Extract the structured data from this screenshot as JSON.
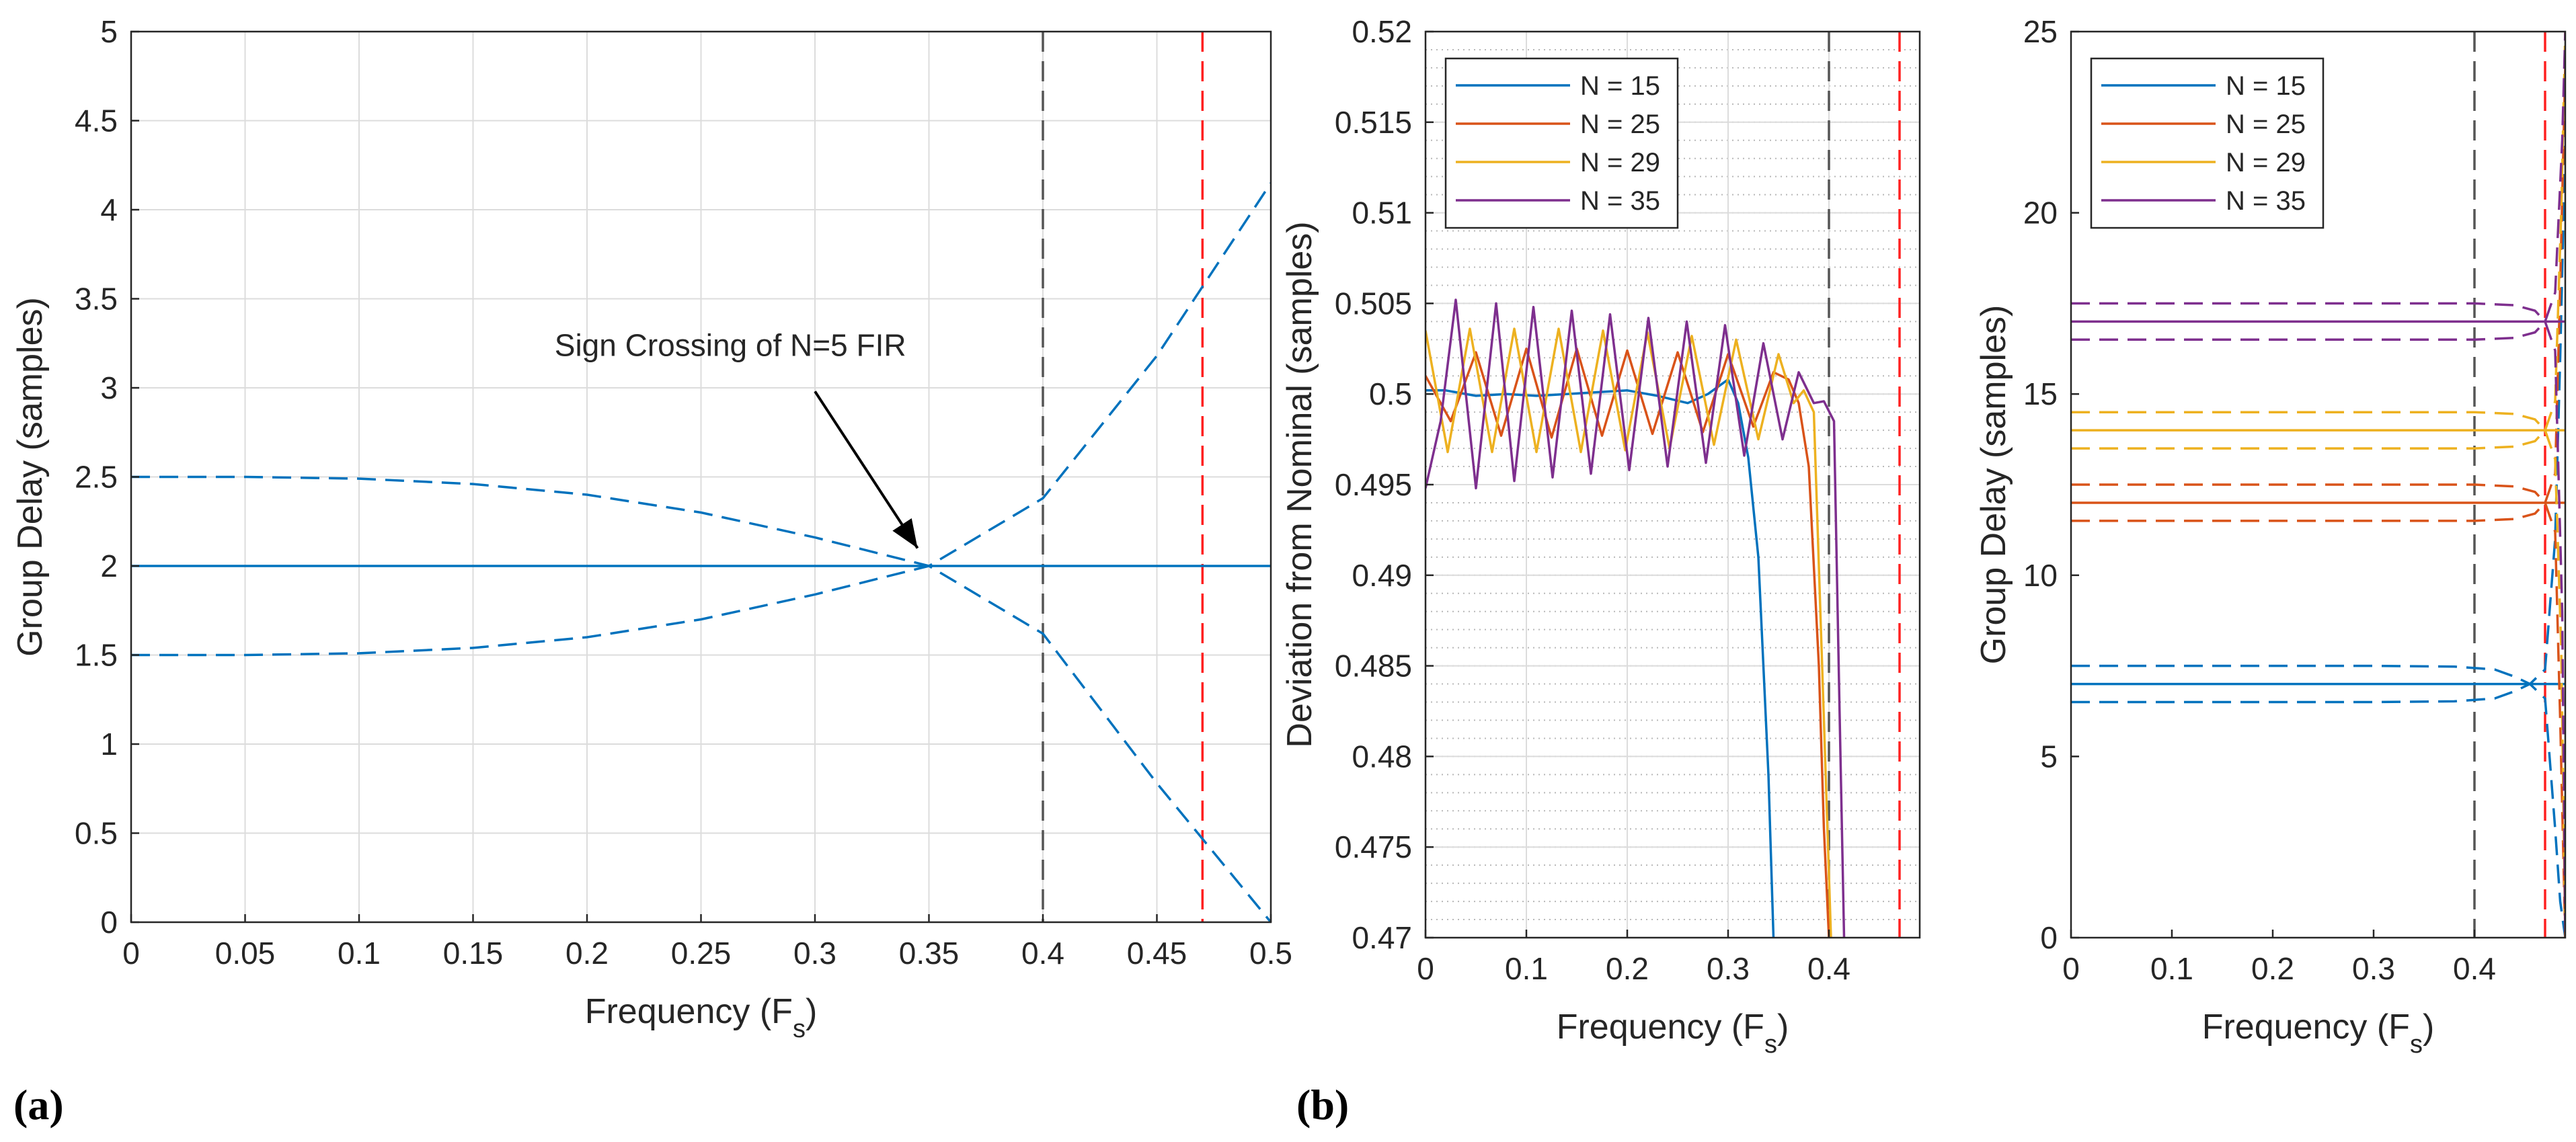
{
  "panel_labels": {
    "a": "(a)",
    "b": "(b)"
  },
  "colors": {
    "blue": "#0072BD",
    "orange": "#D95319",
    "yellow": "#EDB120",
    "purple": "#7E2F8E",
    "grey_dash": "#555555",
    "red_dash": "#FF2020",
    "grid": "#DCDCDC",
    "axis": "#262626"
  },
  "chart_data": [
    {
      "id": "a",
      "type": "line",
      "title": "",
      "xlabel": "Frequency (F",
      "xlabel_sub": "s",
      "xlabel_end": ")",
      "ylabel": "Group Delay (samples)",
      "xlim": [
        0,
        0.5
      ],
      "ylim": [
        0,
        5
      ],
      "xticks": [
        0,
        0.05,
        0.1,
        0.15,
        0.2,
        0.25,
        0.3,
        0.35,
        0.4,
        0.45,
        0.5
      ],
      "xticklabels": [
        "0",
        "0.05",
        "0.1",
        "0.15",
        "0.2",
        "0.25",
        "0.3",
        "0.35",
        "0.4",
        "0.45",
        "0.5"
      ],
      "yticks": [
        0,
        0.5,
        1,
        1.5,
        2,
        2.5,
        3,
        3.5,
        4,
        4.5,
        5
      ],
      "yticklabels": [
        "0",
        "0.5",
        "1",
        "1.5",
        "2",
        "2.5",
        "3",
        "3.5",
        "4",
        "4.5",
        "5"
      ],
      "grid": true,
      "vlines": [
        {
          "x": 0.4,
          "color": "grey_dash"
        },
        {
          "x": 0.47,
          "color": "red_dash"
        }
      ],
      "annotation": {
        "text": "Sign Crossing of N=5 FIR",
        "text_x": 0.34,
        "text_y": 3.18,
        "arrow_from": [
          0.3,
          2.98
        ],
        "arrow_to": [
          0.345,
          2.1
        ]
      },
      "series": [
        {
          "name": "N = 5 nominal",
          "color": "blue",
          "style": "solid",
          "x": [
            0,
            0.5
          ],
          "y": [
            2,
            2
          ]
        },
        {
          "name": "N = 5 upper",
          "color": "blue",
          "style": "dashed",
          "x": [
            0,
            0.05,
            0.1,
            0.15,
            0.2,
            0.25,
            0.3,
            0.35,
            0.4,
            0.45,
            0.5
          ],
          "y": [
            2.5,
            2.5,
            2.49,
            2.46,
            2.4,
            2.3,
            2.16,
            2.0,
            1.62,
            0.78,
            0.0
          ]
        },
        {
          "name": "N = 5 lower",
          "color": "blue",
          "style": "dashed",
          "x": [
            0,
            0.05,
            0.1,
            0.15,
            0.2,
            0.25,
            0.3,
            0.35,
            0.4,
            0.45,
            0.5
          ],
          "y": [
            1.5,
            1.5,
            1.51,
            1.54,
            1.6,
            1.7,
            1.84,
            2.0,
            2.38,
            3.18,
            4.15
          ]
        }
      ]
    },
    {
      "id": "b1",
      "type": "line",
      "title": "",
      "xlabel": "Frequency (F",
      "xlabel_sub": "s",
      "xlabel_end": ")",
      "ylabel": "Deviation from Nominal (samples)",
      "xlim": [
        0,
        0.49
      ],
      "ylim": [
        0.47,
        0.52
      ],
      "xticks": [
        0,
        0.1,
        0.2,
        0.3,
        0.4
      ],
      "xticklabels": [
        "0",
        "0.1",
        "0.2",
        "0.3",
        "0.4"
      ],
      "yticks": [
        0.47,
        0.475,
        0.48,
        0.485,
        0.49,
        0.495,
        0.5,
        0.505,
        0.51,
        0.515,
        0.52
      ],
      "yticklabels": [
        "0.47",
        "0.475",
        "0.48",
        "0.485",
        "0.49",
        "0.495",
        "0.5",
        "0.505",
        "0.51",
        "0.515",
        "0.52"
      ],
      "grid": true,
      "minor_ygrid_step": 0.001,
      "vlines": [
        {
          "x": 0.4,
          "color": "grey_dash"
        },
        {
          "x": 0.47,
          "color": "red_dash"
        }
      ],
      "legend": {
        "location": "top-left",
        "entries": [
          "N = 15",
          "N = 25",
          "N = 29",
          "N = 35"
        ]
      },
      "series": [
        {
          "name": "N = 15",
          "color": "blue",
          "style": "solid",
          "x": [
            0,
            0.02,
            0.05,
            0.08,
            0.11,
            0.14,
            0.17,
            0.2,
            0.23,
            0.26,
            0.28,
            0.3,
            0.31,
            0.32,
            0.33,
            0.34,
            0.345
          ],
          "y": [
            0.5002,
            0.5002,
            0.4999,
            0.5,
            0.4999,
            0.5,
            0.5001,
            0.5002,
            0.4999,
            0.4995,
            0.5,
            0.5008,
            0.4995,
            0.4965,
            0.491,
            0.479,
            0.47
          ]
        },
        {
          "name": "N = 25",
          "color": "orange",
          "style": "solid",
          "x": [
            0,
            0.025,
            0.05,
            0.075,
            0.1,
            0.125,
            0.15,
            0.175,
            0.2,
            0.225,
            0.25,
            0.275,
            0.3,
            0.325,
            0.345,
            0.36,
            0.37,
            0.38,
            0.39,
            0.395,
            0.4
          ],
          "y": [
            0.501,
            0.4985,
            0.5023,
            0.4977,
            0.5025,
            0.4976,
            0.5025,
            0.4977,
            0.5024,
            0.4978,
            0.5023,
            0.4979,
            0.5022,
            0.4982,
            0.5012,
            0.5008,
            0.4995,
            0.496,
            0.485,
            0.476,
            0.47
          ]
        },
        {
          "name": "N = 29",
          "color": "yellow",
          "style": "solid",
          "x": [
            0,
            0.022,
            0.044,
            0.066,
            0.088,
            0.11,
            0.132,
            0.154,
            0.176,
            0.198,
            0.22,
            0.242,
            0.264,
            0.286,
            0.308,
            0.33,
            0.35,
            0.365,
            0.375,
            0.385,
            0.395,
            0.402
          ],
          "y": [
            0.5035,
            0.4968,
            0.5036,
            0.4968,
            0.5036,
            0.4968,
            0.5036,
            0.4968,
            0.5035,
            0.4969,
            0.5034,
            0.497,
            0.5032,
            0.4972,
            0.503,
            0.4975,
            0.5022,
            0.4995,
            0.5002,
            0.499,
            0.482,
            0.47
          ]
        },
        {
          "name": "N = 35",
          "color": "purple",
          "style": "solid",
          "x": [
            0,
            0.015,
            0.03,
            0.05,
            0.07,
            0.088,
            0.107,
            0.126,
            0.145,
            0.164,
            0.183,
            0.202,
            0.221,
            0.24,
            0.259,
            0.278,
            0.297,
            0.316,
            0.335,
            0.354,
            0.37,
            0.385,
            0.395,
            0.405,
            0.41,
            0.415
          ],
          "y": [
            0.4948,
            0.4985,
            0.5052,
            0.4948,
            0.505,
            0.4952,
            0.5048,
            0.4954,
            0.5046,
            0.4956,
            0.5044,
            0.4958,
            0.5042,
            0.496,
            0.504,
            0.4962,
            0.5038,
            0.4966,
            0.5028,
            0.4975,
            0.5012,
            0.4995,
            0.4996,
            0.4985,
            0.484,
            0.47
          ]
        }
      ]
    },
    {
      "id": "b2",
      "type": "line",
      "title": "",
      "xlabel": "Frequency (F",
      "xlabel_sub": "s",
      "xlabel_end": ")",
      "ylabel": "Group Delay (samples)",
      "xlim": [
        0,
        0.49
      ],
      "ylim": [
        0,
        25
      ],
      "xticks": [
        0,
        0.1,
        0.2,
        0.3,
        0.4
      ],
      "xticklabels": [
        "0",
        "0.1",
        "0.2",
        "0.3",
        "0.4"
      ],
      "yticks": [
        0,
        5,
        10,
        15,
        20,
        25
      ],
      "yticklabels": [
        "0",
        "5",
        "10",
        "15",
        "20",
        "25"
      ],
      "grid": false,
      "vlines": [
        {
          "x": 0.4,
          "color": "grey_dash"
        },
        {
          "x": 0.47,
          "color": "red_dash"
        }
      ],
      "legend": {
        "location": "top-left",
        "entries": [
          "N = 15",
          "N = 25",
          "N = 29",
          "N = 35"
        ]
      },
      "series": [
        {
          "name": "N = 15 nominal",
          "color": "blue",
          "style": "solid",
          "x": [
            0,
            0.49
          ],
          "y": [
            7,
            7
          ]
        },
        {
          "name": "N = 15 upper",
          "color": "blue",
          "style": "dashed",
          "x": [
            0,
            0.1,
            0.2,
            0.3,
            0.38,
            0.42,
            0.44,
            0.455,
            0.47,
            0.48,
            0.485,
            0.49
          ],
          "y": [
            7.5,
            7.5,
            7.5,
            7.5,
            7.48,
            7.4,
            7.2,
            7.0,
            6.6,
            3.0,
            1.0,
            0.0
          ]
        },
        {
          "name": "N = 15 lower",
          "color": "blue",
          "style": "dashed",
          "x": [
            0,
            0.1,
            0.2,
            0.3,
            0.38,
            0.42,
            0.44,
            0.455,
            0.47,
            0.48,
            0.485,
            0.49
          ],
          "y": [
            6.5,
            6.5,
            6.5,
            6.5,
            6.52,
            6.6,
            6.8,
            7.0,
            7.4,
            11.0,
            16.0,
            22.0
          ]
        },
        {
          "name": "N = 25 nominal",
          "color": "orange",
          "style": "solid",
          "x": [
            0,
            0.49
          ],
          "y": [
            12,
            12
          ]
        },
        {
          "name": "N = 25 upper",
          "color": "orange",
          "style": "dashed",
          "x": [
            0,
            0.1,
            0.2,
            0.3,
            0.4,
            0.44,
            0.46,
            0.47,
            0.48,
            0.485,
            0.49
          ],
          "y": [
            12.5,
            12.5,
            12.5,
            12.5,
            12.5,
            12.45,
            12.3,
            12.0,
            11.2,
            6.0,
            0.0
          ]
        },
        {
          "name": "N = 25 lower",
          "color": "orange",
          "style": "dashed",
          "x": [
            0,
            0.1,
            0.2,
            0.3,
            0.4,
            0.44,
            0.46,
            0.47,
            0.48,
            0.485,
            0.49
          ],
          "y": [
            11.5,
            11.5,
            11.5,
            11.5,
            11.5,
            11.55,
            11.7,
            12.0,
            12.8,
            18.0,
            24.0
          ]
        },
        {
          "name": "N = 29 nominal",
          "color": "yellow",
          "style": "solid",
          "x": [
            0,
            0.49
          ],
          "y": [
            14,
            14
          ]
        },
        {
          "name": "N = 29 upper",
          "color": "yellow",
          "style": "dashed",
          "x": [
            0,
            0.1,
            0.2,
            0.3,
            0.4,
            0.44,
            0.46,
            0.47,
            0.48,
            0.486,
            0.49
          ],
          "y": [
            14.5,
            14.5,
            14.5,
            14.5,
            14.5,
            14.45,
            14.3,
            14.0,
            13.2,
            8.0,
            0.0
          ]
        },
        {
          "name": "N = 29 lower",
          "color": "yellow",
          "style": "dashed",
          "x": [
            0,
            0.1,
            0.2,
            0.3,
            0.4,
            0.44,
            0.46,
            0.47,
            0.48,
            0.486,
            0.49
          ],
          "y": [
            13.5,
            13.5,
            13.5,
            13.5,
            13.5,
            13.55,
            13.7,
            14.0,
            14.8,
            20.0,
            25.0
          ]
        },
        {
          "name": "N = 35 nominal",
          "color": "purple",
          "style": "solid",
          "x": [
            0,
            0.49
          ],
          "y": [
            17,
            17
          ]
        },
        {
          "name": "N = 35 upper",
          "color": "purple",
          "style": "dashed",
          "x": [
            0,
            0.1,
            0.2,
            0.3,
            0.4,
            0.44,
            0.46,
            0.47,
            0.48,
            0.487,
            0.49
          ],
          "y": [
            17.5,
            17.5,
            17.5,
            17.5,
            17.5,
            17.45,
            17.3,
            17.0,
            16.2,
            9.0,
            0.0
          ]
        },
        {
          "name": "N = 35 lower",
          "color": "purple",
          "style": "dashed",
          "x": [
            0,
            0.1,
            0.2,
            0.3,
            0.4,
            0.44,
            0.46,
            0.47,
            0.48,
            0.487,
            0.49
          ],
          "y": [
            16.5,
            16.5,
            16.5,
            16.5,
            16.5,
            16.55,
            16.7,
            17.0,
            17.8,
            22.0,
            25.0
          ]
        }
      ]
    }
  ]
}
